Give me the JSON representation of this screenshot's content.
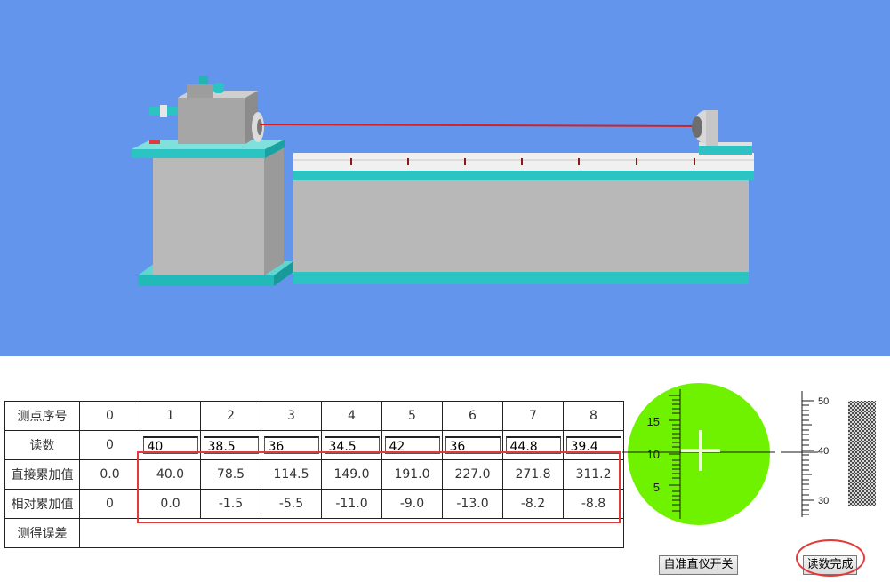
{
  "table": {
    "row_labels": [
      "测点序号",
      "读数",
      "直接累加值",
      "相对累加值",
      "测得误差"
    ],
    "point_numbers": [
      "0",
      "1",
      "2",
      "3",
      "4",
      "5",
      "6",
      "7",
      "8"
    ],
    "readings": [
      "0",
      "40",
      "38.5",
      "36",
      "34.5",
      "42",
      "36",
      "44.8",
      "39.4"
    ],
    "direct_sum": [
      "0.0",
      "40.0",
      "78.5",
      "114.5",
      "149.0",
      "191.0",
      "227.0",
      "271.8",
      "311.2"
    ],
    "relative_sum": [
      "0",
      "0.0",
      "-1.5",
      "-5.5",
      "-11.0",
      "-9.0",
      "-13.0",
      "-8.2",
      "-8.8"
    ],
    "measured_error": ""
  },
  "gauge": {
    "labels": [
      "15",
      "10",
      "5"
    ],
    "color": "#6ff200"
  },
  "vernier": {
    "labels": [
      "50",
      "40",
      "30"
    ]
  },
  "buttons": {
    "autocollimator": "自准直仪开关",
    "done": "读数完成"
  },
  "colors": {
    "sky": "#6495ed",
    "teal": "#2cc3c3",
    "highlight": "#e23a3a",
    "laser": "#d42020"
  }
}
